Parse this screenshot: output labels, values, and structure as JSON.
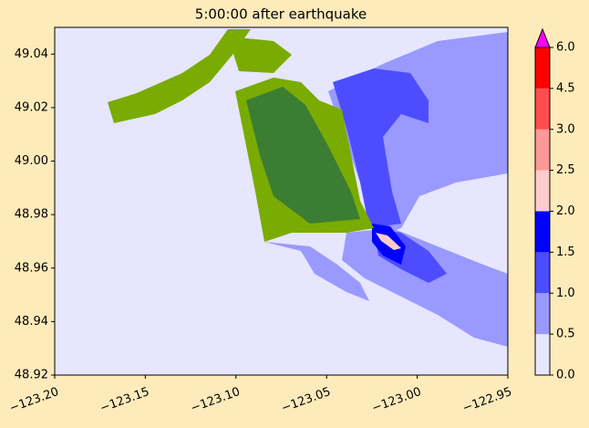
{
  "chart_data": {
    "type": "contour",
    "title": "5:00:00 after earthquake",
    "xlim": [
      -123.2,
      -122.95
    ],
    "ylim": [
      48.92,
      49.05
    ],
    "xticks": [
      {
        "value": -123.2,
        "label": "−123.20"
      },
      {
        "value": -123.15,
        "label": "−123.15"
      },
      {
        "value": -123.1,
        "label": "−123.10"
      },
      {
        "value": -123.05,
        "label": "−123.05"
      },
      {
        "value": -123.0,
        "label": "−123.00"
      },
      {
        "value": -122.95,
        "label": "−122.95"
      }
    ],
    "yticks": [
      48.92,
      48.94,
      48.96,
      48.98,
      {
        "value": 49.0,
        "label": "49.00"
      },
      49.02,
      49.04
    ],
    "colorbar": {
      "levels": [
        {
          "value": 0,
          "label": "0.0"
        },
        0.5,
        {
          "value": 1,
          "label": "1.0"
        },
        1.5,
        {
          "value": 2,
          "label": "2.0"
        },
        2.5,
        {
          "value": 3,
          "label": "3.0"
        },
        4.5,
        {
          "value": 6,
          "label": "6.0"
        }
      ],
      "colors": [
        "#e6e6ff",
        "#9999ff",
        "#4d4dff",
        "#0000ff",
        "#ffcccc",
        "#ff9999",
        "#ff4d4d",
        "#ff0000"
      ],
      "extend_color": "#ff00ff"
    }
  }
}
